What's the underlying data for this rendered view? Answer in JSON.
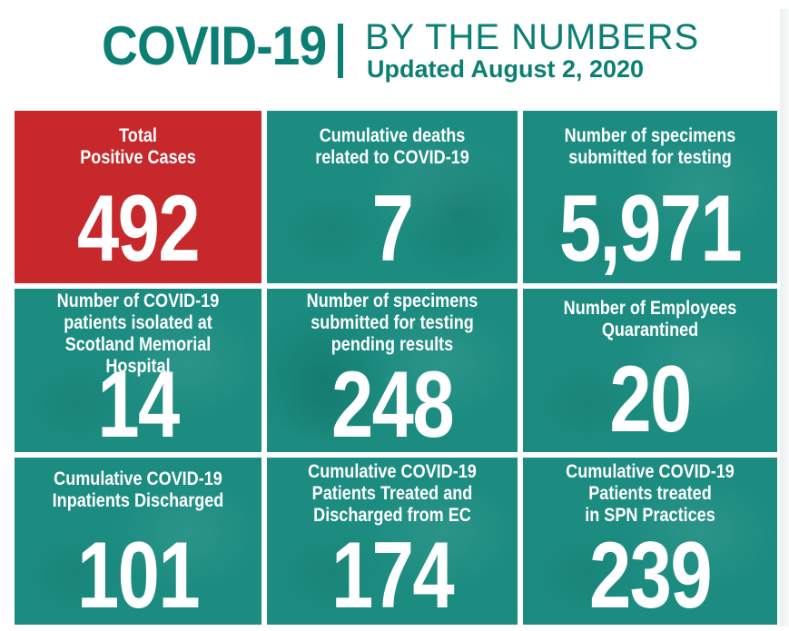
{
  "header": {
    "title": "COVID-19",
    "subtitle": "BY THE NUMBERS",
    "updated": "Updated August 2, 2020"
  },
  "tiles": [
    {
      "label": "Total\nPositive Cases",
      "value": "492",
      "color": "#c6282b"
    },
    {
      "label": "Cumulative deaths\nrelated to COVID-19",
      "value": "7",
      "color": "#1c8c80"
    },
    {
      "label": "Number of specimens\nsubmitted for testing",
      "value": "5,971",
      "color": "#1c8c80"
    },
    {
      "label": "Number of COVID-19\npatients isolated at\nScotland Memorial Hospital",
      "value": "14",
      "color": "#1c8c80"
    },
    {
      "label": "Number of specimens\nsubmitted for testing\npending results",
      "value": "248",
      "color": "#1c8c80"
    },
    {
      "label": "Number of Employees\nQuarantined",
      "value": "20",
      "color": "#1c8c80"
    },
    {
      "label": "Cumulative COVID-19\nInpatients Discharged",
      "value": "101",
      "color": "#1c8c80"
    },
    {
      "label": "Cumulative COVID-19\nPatients Treated and\nDischarged from EC",
      "value": "174",
      "color": "#1c8c80"
    },
    {
      "label": "Cumulative COVID-19\nPatients treated\nin SPN Practices",
      "value": "239",
      "color": "#1c8c80"
    }
  ]
}
